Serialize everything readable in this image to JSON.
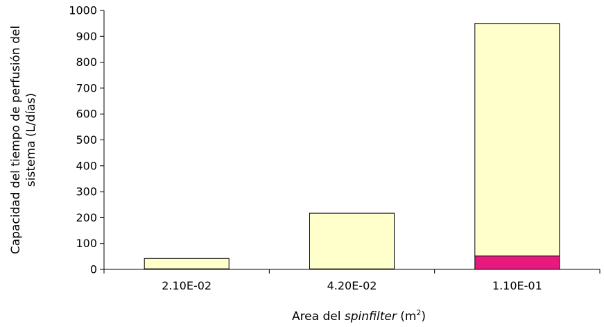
{
  "chart_data": {
    "type": "bar",
    "stacked": true,
    "categories": [
      "2.10E-02",
      "4.20E-02",
      "1.10E-01"
    ],
    "series": [
      {
        "color": "#e6197f",
        "values": [
          2,
          2,
          52
        ]
      },
      {
        "color": "#ffffcc",
        "values": [
          40,
          215,
          898
        ]
      }
    ],
    "ylim": [
      0,
      1000
    ],
    "yticks": [
      0,
      100,
      200,
      300,
      400,
      500,
      600,
      700,
      800,
      900,
      1000
    ],
    "ytick_labels": [
      "0",
      "100",
      "200",
      "300",
      "400",
      "500",
      "600",
      "700",
      "800",
      "900",
      "1000"
    ],
    "ylabel_line1": "Capacidad del tiempo de perfusión del",
    "ylabel_line2": "sistema (L/días)",
    "xlabel_prefix": "Area del ",
    "xlabel_italic": "spinfilter",
    "xlabel_unit_open": " (m",
    "xlabel_unit_sup": "2",
    "xlabel_unit_close": ")",
    "grid": false,
    "legend": "none",
    "bar_edge_color": "#000000",
    "axis_color": "#000000"
  }
}
